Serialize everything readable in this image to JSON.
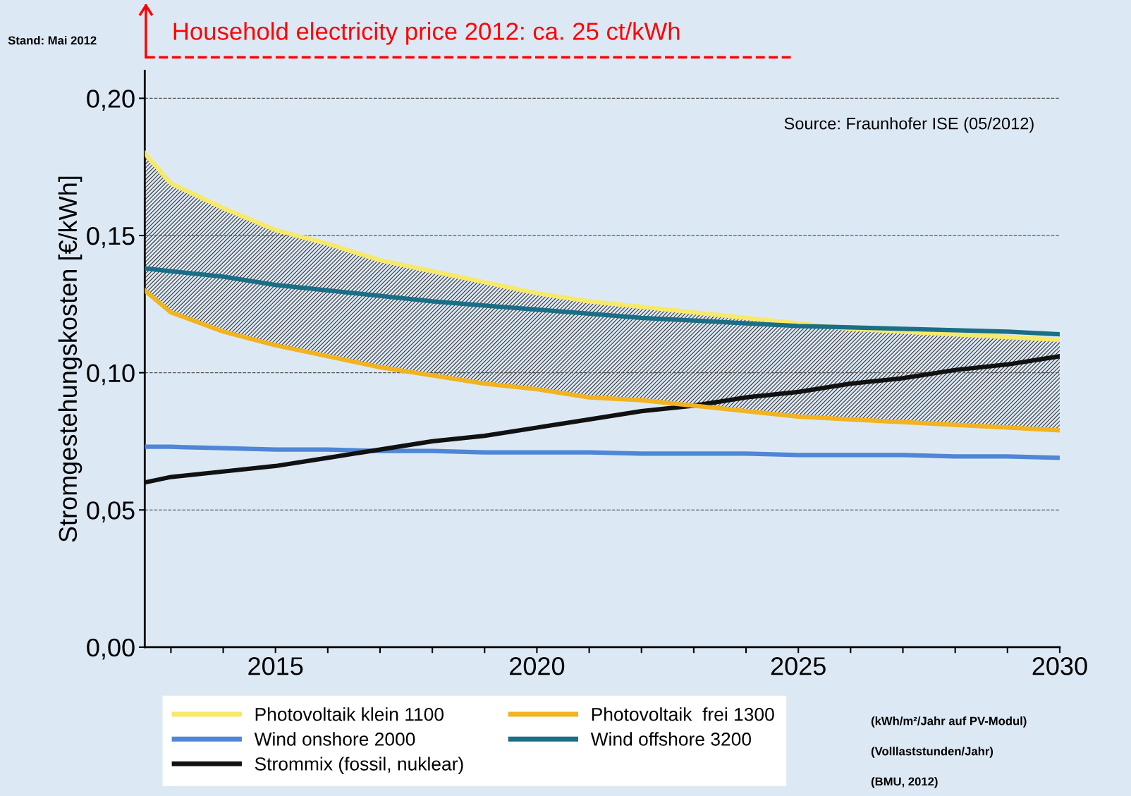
{
  "chart_data": {
    "type": "line",
    "ylabel": "Stromgestehungskosten [€/kWh]",
    "x": [
      2012.5,
      2013,
      2014,
      2015,
      2016,
      2017,
      2018,
      2019,
      2020,
      2021,
      2022,
      2023,
      2024,
      2025,
      2026,
      2027,
      2028,
      2029,
      2030
    ],
    "series": [
      {
        "name": "Photovoltaik klein 1100",
        "color": "#f7e96a",
        "values": [
          0.18,
          0.169,
          0.16,
          0.152,
          0.147,
          0.141,
          0.137,
          0.133,
          0.129,
          0.126,
          0.124,
          0.122,
          0.12,
          0.118,
          0.116,
          0.115,
          0.114,
          0.113,
          0.112
        ],
        "lower": [
          0.13,
          0.122,
          0.115,
          0.11,
          0.106,
          0.102,
          0.099,
          0.096,
          0.094,
          0.091,
          0.09,
          0.088,
          0.086,
          0.084,
          0.083,
          0.082,
          0.081,
          0.08,
          0.079
        ],
        "upper": [
          0.18,
          0.169,
          0.16,
          0.152,
          0.147,
          0.141,
          0.137,
          0.133,
          0.129,
          0.126,
          0.124,
          0.122,
          0.12,
          0.118,
          0.116,
          0.115,
          0.114,
          0.113,
          0.112
        ]
      },
      {
        "name": "Wind onshore 2000",
        "color": "#4f86d6",
        "values": [
          0.073,
          0.073,
          0.0725,
          0.072,
          0.072,
          0.0715,
          0.0715,
          0.071,
          0.071,
          0.071,
          0.0705,
          0.0705,
          0.0705,
          0.07,
          0.07,
          0.07,
          0.0695,
          0.0695,
          0.069
        ]
      },
      {
        "name": "Strommix (fossil, nuklear)",
        "color": "#111111",
        "values": [
          0.06,
          0.062,
          0.064,
          0.066,
          0.069,
          0.072,
          0.075,
          0.077,
          0.08,
          0.083,
          0.086,
          0.088,
          0.091,
          0.093,
          0.096,
          0.098,
          0.101,
          0.103,
          0.106
        ]
      },
      {
        "name": "Photovoltaik  frei 1300",
        "color": "#f2b320",
        "values": [
          0.13,
          0.122,
          0.115,
          0.11,
          0.106,
          0.102,
          0.099,
          0.096,
          0.094,
          0.091,
          0.09,
          0.088,
          0.086,
          0.084,
          0.083,
          0.082,
          0.081,
          0.08,
          0.079
        ]
      },
      {
        "name": "Wind offshore 3200",
        "color": "#1a6e86",
        "values": [
          0.138,
          0.137,
          0.135,
          0.132,
          0.13,
          0.128,
          0.126,
          0.1245,
          0.123,
          0.1215,
          0.12,
          0.119,
          0.118,
          0.117,
          0.1165,
          0.116,
          0.1155,
          0.115,
          0.114
        ]
      }
    ],
    "xlim": [
      2012.5,
      2030
    ],
    "xticks": [
      {
        "value": 2013,
        "label": null
      },
      {
        "value": 2014,
        "label": null
      },
      2015,
      {
        "value": 2016,
        "label": null
      },
      {
        "value": 2017,
        "label": null
      },
      {
        "value": 2018,
        "label": null
      },
      {
        "value": 2019,
        "label": null
      },
      2020,
      {
        "value": 2021,
        "label": null
      },
      {
        "value": 2022,
        "label": null
      },
      {
        "value": 2023,
        "label": null
      },
      {
        "value": 2024,
        "label": null
      },
      2025,
      {
        "value": 2026,
        "label": null
      },
      {
        "value": 2027,
        "label": null
      },
      {
        "value": 2028,
        "label": null
      },
      {
        "value": 2029,
        "label": null
      },
      2030
    ],
    "ylim": [
      0,
      0.21
    ],
    "yticks": [
      {
        "value": 0,
        "label": "0,00"
      },
      {
        "value": 0.05,
        "label": "0,05"
      },
      {
        "value": 0.1,
        "label": "0,10"
      },
      {
        "value": 0.15,
        "label": "0,15"
      },
      {
        "value": 0.2,
        "label": "0,20"
      }
    ],
    "grid": "y",
    "legend": "bottom",
    "marker": "none",
    "line_style": "solid",
    "annotations": [
      "Household electricity price 2012: ca. 25 ct/kWh",
      "Stand: Mai 2012",
      "Source: Fraunhofer ISE (05/2012)",
      "(kWh/m²/Jahr auf PV-Modul)",
      "(Volllaststunden/Jahr)",
      "(BMU, 2012)"
    ]
  }
}
